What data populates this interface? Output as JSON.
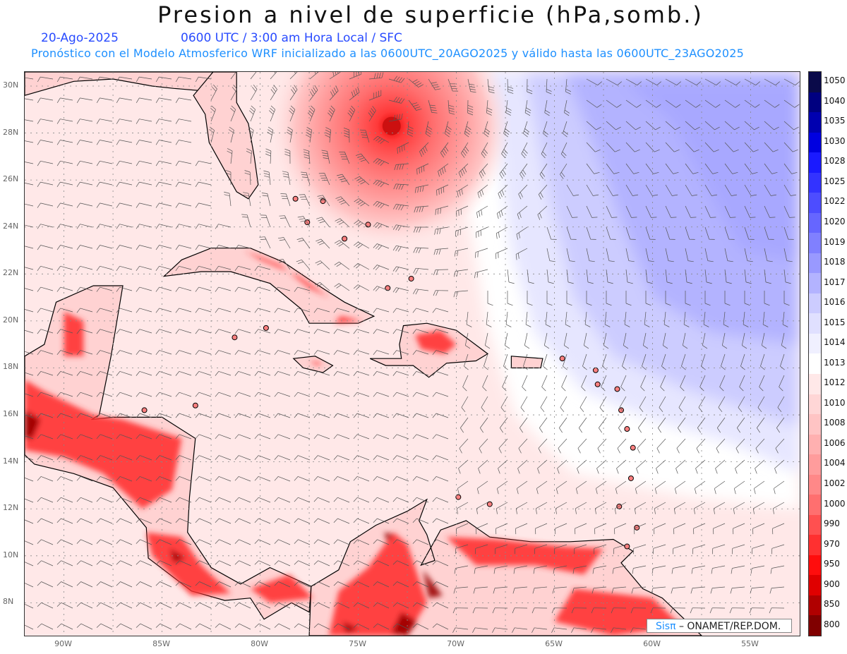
{
  "title": "Presion a nivel de superficie (hPa,somb.)",
  "date_label": "20-Ago-2025",
  "time_label": "0600 UTC / 3:00 am Hora Local / SFC",
  "forecast_note": "Pronóstico con el Modelo Atmosferico WRF inicializado a las 0600UTC_20AGO2025 y válido hasta las  0600UTC_23AGO2025",
  "credit": {
    "brand": "Sisπ",
    "org": " – ONAMET/REP.DOM."
  },
  "lat_labels": [
    "30N",
    "28N",
    "26N",
    "24N",
    "22N",
    "20N",
    "18N",
    "16N",
    "14N",
    "12N",
    "10N",
    "8N"
  ],
  "lon_labels": [
    "90W",
    "85W",
    "80W",
    "75W",
    "70W",
    "65W",
    "60W",
    "55W"
  ],
  "colorbar": {
    "levels": [
      "1050",
      "1040",
      "1035",
      "1030",
      "1028",
      "1025",
      "1022",
      "1020",
      "1019",
      "1018",
      "1017",
      "1016",
      "1015",
      "1014",
      "1013",
      "1012",
      "1010",
      "1008",
      "1006",
      "1004",
      "1002",
      "1000",
      "990",
      "970",
      "950",
      "900",
      "850",
      "800"
    ],
    "colors": [
      "#0a0a4a",
      "#000080",
      "#0000b0",
      "#0000e0",
      "#1a1aff",
      "#3333ff",
      "#4d4dff",
      "#6666ff",
      "#8080ff",
      "#9999ff",
      "#b3b3ff",
      "#ccccff",
      "#e0e0ff",
      "#f0f0ff",
      "#ffffff",
      "#ffe8e8",
      "#ffd6d6",
      "#ffc4c4",
      "#ffb0b0",
      "#ff9c9c",
      "#ff8888",
      "#ff6f6f",
      "#ff5050",
      "#ff3030",
      "#ff0d0d",
      "#e00000",
      "#b00000",
      "#800000"
    ]
  },
  "map": {
    "extent": {
      "lon_min": -92,
      "lon_max": -52.5,
      "lat_min": 6.6,
      "lat_max": 30.6
    },
    "hurricane_center": {
      "lon": -73.3,
      "lat": 28.3
    },
    "colors": {
      "background": "#ffe8e8",
      "high_pressure": "#a8a8ff",
      "low_pressure": "#ff3030"
    }
  }
}
